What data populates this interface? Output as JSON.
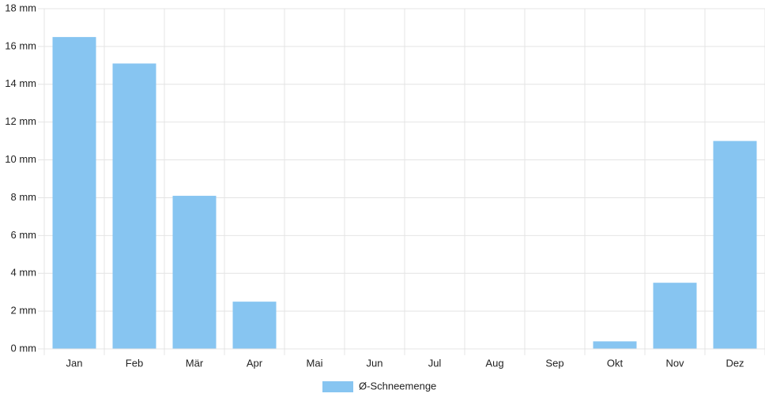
{
  "chart_data": {
    "type": "bar",
    "categories": [
      "Jan",
      "Feb",
      "Mär",
      "Apr",
      "Mai",
      "Jun",
      "Jul",
      "Aug",
      "Sep",
      "Okt",
      "Nov",
      "Dez"
    ],
    "series": [
      {
        "name": "Ø-Schneemenge",
        "color": "#87c5f1",
        "values": [
          16.5,
          15.1,
          8.1,
          2.5,
          0,
          0,
          0,
          0,
          0,
          0.4,
          3.5,
          11.0
        ]
      }
    ],
    "ylim": [
      0,
      18
    ],
    "yticks": [
      {
        "value": 0,
        "label": "0 mm"
      },
      {
        "value": 2,
        "label": "2 mm"
      },
      {
        "value": 4,
        "label": "4 mm"
      },
      {
        "value": 6,
        "label": "6 mm"
      },
      {
        "value": 8,
        "label": "8 mm"
      },
      {
        "value": 10,
        "label": "10 mm"
      },
      {
        "value": 12,
        "label": "12 mm"
      },
      {
        "value": 14,
        "label": "14 mm"
      },
      {
        "value": 16,
        "label": "16 mm"
      },
      {
        "value": 18,
        "label": "18 mm"
      }
    ],
    "grid": true,
    "legend": "bottom"
  }
}
